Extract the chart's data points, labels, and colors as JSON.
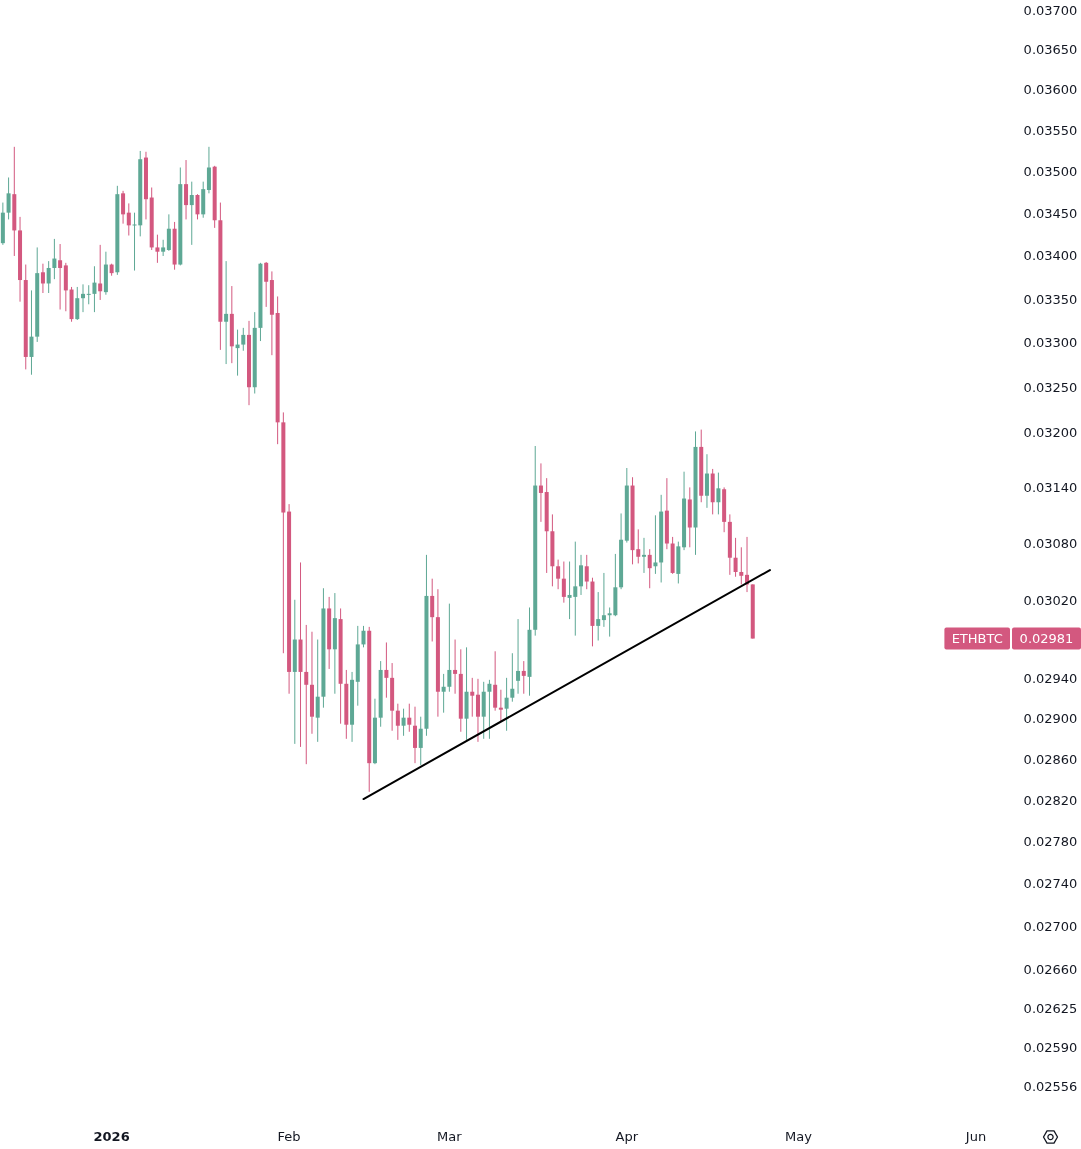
{
  "chart_data": {
    "type": "candlestick",
    "log": true,
    "xlim": [
      "2025-12-12T12:00",
      "2026-06-01"
    ],
    "ylim": [
      0.02556,
      0.037
    ],
    "xticks": [
      {
        "value": "2026-01-01",
        "label": "2026"
      },
      {
        "value": "2026-02-01",
        "label": "Feb"
      },
      {
        "value": "2026-03-01",
        "label": "Mar"
      },
      {
        "value": "2026-04-01",
        "label": "Apr"
      },
      {
        "value": "2026-05-01",
        "label": "May"
      },
      {
        "value": "2026-06-01",
        "label": "Jun"
      }
    ],
    "yticks": [
      {
        "value": 0.037,
        "label": "0.03700"
      },
      {
        "value": 0.0365,
        "label": "0.03650"
      },
      {
        "value": 0.036,
        "label": "0.03600"
      },
      {
        "value": 0.0355,
        "label": "0.03550"
      },
      {
        "value": 0.035,
        "label": "0.03500"
      },
      {
        "value": 0.0345,
        "label": "0.03450"
      },
      {
        "value": 0.034,
        "label": "0.03400"
      },
      {
        "value": 0.0335,
        "label": "0.03350"
      },
      {
        "value": 0.033,
        "label": "0.03300"
      },
      {
        "value": 0.0325,
        "label": "0.03250"
      },
      {
        "value": 0.032,
        "label": "0.03200"
      },
      {
        "value": 0.0314,
        "label": "0.03140"
      },
      {
        "value": 0.0308,
        "label": "0.03080"
      },
      {
        "value": 0.0302,
        "label": "0.03020"
      },
      {
        "value": 0.0294,
        "label": "0.02940"
      },
      {
        "value": 0.029,
        "label": "0.02900"
      },
      {
        "value": 0.0286,
        "label": "0.02860"
      },
      {
        "value": 0.0282,
        "label": "0.02820"
      },
      {
        "value": 0.0278,
        "label": "0.02780"
      },
      {
        "value": 0.0274,
        "label": "0.02740"
      },
      {
        "value": 0.027,
        "label": "0.02700"
      },
      {
        "value": 0.0266,
        "label": "0.02660"
      },
      0.02625,
      {
        "value": 0.0259,
        "label": "0.02590"
      },
      0.02556
    ],
    "x": [
      "2025-12-13",
      "2025-12-14",
      "2025-12-15",
      "2025-12-16",
      "2025-12-17",
      "2025-12-18",
      "2025-12-19",
      "2025-12-20",
      "2025-12-21",
      "2025-12-22",
      "2025-12-23",
      "2025-12-24",
      "2025-12-25",
      "2025-12-26",
      "2025-12-27",
      "2025-12-28",
      "2025-12-29",
      "2025-12-30",
      "2025-12-31",
      "2026-01-01",
      "2026-01-02",
      "2026-01-03",
      "2026-01-04",
      "2026-01-05",
      "2026-01-06",
      "2026-01-07",
      "2026-01-08",
      "2026-01-09",
      "2026-01-10",
      "2026-01-11",
      "2026-01-12",
      "2026-01-13",
      "2026-01-14",
      "2026-01-15",
      "2026-01-16",
      "2026-01-17",
      "2026-01-18",
      "2026-01-19",
      "2026-01-20",
      "2026-01-21",
      "2026-01-22",
      "2026-01-23",
      "2026-01-24",
      "2026-01-25",
      "2026-01-26",
      "2026-01-27",
      "2026-01-28",
      "2026-01-29",
      "2026-01-30",
      "2026-01-31",
      "2026-02-01",
      "2026-02-02",
      "2026-02-03",
      "2026-02-04",
      "2026-02-05",
      "2026-02-06",
      "2026-02-07",
      "2026-02-08",
      "2026-02-09",
      "2026-02-10",
      "2026-02-11",
      "2026-02-12",
      "2026-02-13",
      "2026-02-14",
      "2026-02-15",
      "2026-02-16",
      "2026-02-17",
      "2026-02-18",
      "2026-02-19",
      "2026-02-20",
      "2026-02-21",
      "2026-02-22",
      "2026-02-23",
      "2026-02-24",
      "2026-02-25",
      "2026-02-26",
      "2026-02-27",
      "2026-02-28",
      "2026-03-01",
      "2026-03-02",
      "2026-03-03",
      "2026-03-04",
      "2026-03-05",
      "2026-03-06",
      "2026-03-07",
      "2026-03-08",
      "2026-03-09",
      "2026-03-10",
      "2026-03-11",
      "2026-03-12",
      "2026-03-13",
      "2026-03-14",
      "2026-03-15",
      "2026-03-16",
      "2026-03-17",
      "2026-03-18",
      "2026-03-19",
      "2026-03-20",
      "2026-03-21",
      "2026-03-22",
      "2026-03-23",
      "2026-03-24",
      "2026-03-25",
      "2026-03-26",
      "2026-03-27",
      "2026-03-28",
      "2026-03-29",
      "2026-03-30",
      "2026-03-31",
      "2026-04-01",
      "2026-04-02",
      "2026-04-03",
      "2026-04-04",
      "2026-04-05",
      "2026-04-06",
      "2026-04-07",
      "2026-04-08",
      "2026-04-09",
      "2026-04-10",
      "2026-04-11",
      "2026-04-12",
      "2026-04-13",
      "2026-04-14",
      "2026-04-15",
      "2026-04-16",
      "2026-04-17",
      "2026-04-18",
      "2026-04-19",
      "2026-04-20",
      "2026-04-21",
      "2026-04-22",
      "2026-04-23"
    ],
    "ohlc": [
      [
        0.03415,
        0.03463,
        0.03413,
        0.03451
      ],
      [
        0.03451,
        0.03493,
        0.03443,
        0.03474
      ],
      [
        0.03473,
        0.0353,
        0.034,
        0.0343
      ],
      [
        0.0343,
        0.03446,
        0.03347,
        0.03372
      ],
      [
        0.03372,
        0.0339,
        0.0327,
        0.03284
      ],
      [
        0.03284,
        0.0336,
        0.03264,
        0.03307
      ],
      [
        0.03307,
        0.0341,
        0.03301,
        0.0338
      ],
      [
        0.03381,
        0.03391,
        0.03357,
        0.03368
      ],
      [
        0.03368,
        0.03394,
        0.03357,
        0.03386
      ],
      [
        0.03386,
        0.0342,
        0.03373,
        0.03397
      ],
      [
        0.03395,
        0.03414,
        0.03338,
        0.03386
      ],
      [
        0.03389,
        0.03392,
        0.03336,
        0.0336
      ],
      [
        0.03361,
        0.03364,
        0.03324,
        0.03327
      ],
      [
        0.03327,
        0.03364,
        0.03326,
        0.03351
      ],
      [
        0.03351,
        0.03367,
        0.03335,
        0.03356
      ],
      [
        0.03355,
        0.03366,
        0.03344,
        0.03356
      ],
      [
        0.03356,
        0.03388,
        0.03335,
        0.03369
      ],
      [
        0.03368,
        0.03413,
        0.03349,
        0.03359
      ],
      [
        0.03358,
        0.03405,
        0.03355,
        0.0339
      ],
      [
        0.0339,
        0.03391,
        0.03377,
        0.0338
      ],
      [
        0.03381,
        0.03483,
        0.03378,
        0.03473
      ],
      [
        0.03474,
        0.03477,
        0.03438,
        0.03449
      ],
      [
        0.03451,
        0.03462,
        0.03424,
        0.03436
      ],
      [
        0.03436,
        0.03451,
        0.03383,
        0.03437
      ],
      [
        0.03436,
        0.03525,
        0.03423,
        0.03515
      ],
      [
        0.03517,
        0.03524,
        0.03443,
        0.03467
      ],
      [
        0.03469,
        0.03481,
        0.03407,
        0.0341
      ],
      [
        0.0341,
        0.03425,
        0.03392,
        0.03405
      ],
      [
        0.03405,
        0.03419,
        0.034,
        0.0341
      ],
      [
        0.03407,
        0.03449,
        0.03406,
        0.03432
      ],
      [
        0.03432,
        0.0344,
        0.03384,
        0.0339
      ],
      [
        0.0339,
        0.03505,
        0.03389,
        0.03485
      ],
      [
        0.03485,
        0.03514,
        0.03443,
        0.0346
      ],
      [
        0.0346,
        0.03488,
        0.03413,
        0.03472
      ],
      [
        0.03472,
        0.03473,
        0.03443,
        0.03449
      ],
      [
        0.03449,
        0.03488,
        0.03445,
        0.03479
      ],
      [
        0.03478,
        0.0353,
        0.03474,
        0.03505
      ],
      [
        0.03506,
        0.03507,
        0.03433,
        0.03442
      ],
      [
        0.03442,
        0.03463,
        0.03292,
        0.03324
      ],
      [
        0.03324,
        0.03394,
        0.03276,
        0.03333
      ],
      [
        0.03333,
        0.03365,
        0.03277,
        0.03296
      ],
      [
        0.03294,
        0.03315,
        0.03263,
        0.03298
      ],
      [
        0.03298,
        0.03317,
        0.03291,
        0.03309
      ],
      [
        0.03309,
        0.03325,
        0.0323,
        0.0325
      ],
      [
        0.0325,
        0.03335,
        0.03243,
        0.03317
      ],
      [
        0.03317,
        0.03392,
        0.03302,
        0.03391
      ],
      [
        0.03392,
        0.03393,
        0.03341,
        0.0337
      ],
      [
        0.03372,
        0.03382,
        0.03286,
        0.03332
      ],
      [
        0.03334,
        0.03353,
        0.03187,
        0.03211
      ],
      [
        0.03211,
        0.03222,
        0.02966,
        0.03113
      ],
      [
        0.03114,
        0.03122,
        0.02925,
        0.02947
      ],
      [
        0.02947,
        0.03021,
        0.02875,
        0.0298
      ],
      [
        0.0298,
        0.0306,
        0.02872,
        0.02947
      ],
      [
        0.02947,
        0.02995,
        0.02855,
        0.02934
      ],
      [
        0.02934,
        0.02988,
        0.02885,
        0.02902
      ],
      [
        0.02901,
        0.0298,
        0.02877,
        0.02922
      ],
      [
        0.02922,
        0.03033,
        0.02911,
        0.03012
      ],
      [
        0.03012,
        0.03024,
        0.0295,
        0.0297
      ],
      [
        0.0297,
        0.03028,
        0.02925,
        0.03002
      ],
      [
        0.03001,
        0.03012,
        0.02895,
        0.02935
      ],
      [
        0.02935,
        0.02949,
        0.0288,
        0.02894
      ],
      [
        0.02894,
        0.02947,
        0.02877,
        0.02939
      ],
      [
        0.02937,
        0.02994,
        0.02913,
        0.02975
      ],
      [
        0.02975,
        0.02994,
        0.02972,
        0.02989
      ],
      [
        0.02989,
        0.02993,
        0.02828,
        0.02856
      ],
      [
        0.02856,
        0.0292,
        0.02855,
        0.02901
      ],
      [
        0.02901,
        0.02958,
        0.02892,
        0.02949
      ],
      [
        0.02949,
        0.02977,
        0.02921,
        0.02941
      ],
      [
        0.02941,
        0.02956,
        0.02888,
        0.02908
      ],
      [
        0.02908,
        0.02915,
        0.02879,
        0.02893
      ],
      [
        0.02893,
        0.0291,
        0.02883,
        0.02901
      ],
      [
        0.02901,
        0.02915,
        0.02887,
        0.02894
      ],
      [
        0.02893,
        0.02912,
        0.02856,
        0.02871
      ],
      [
        0.02871,
        0.02902,
        0.02854,
        0.0289
      ],
      [
        0.0289,
        0.03068,
        0.02883,
        0.03025
      ],
      [
        0.03025,
        0.03043,
        0.02978,
        0.03003
      ],
      [
        0.03003,
        0.03032,
        0.02902,
        0.02927
      ],
      [
        0.02927,
        0.02945,
        0.02906,
        0.02932
      ],
      [
        0.02932,
        0.03017,
        0.02927,
        0.02949
      ],
      [
        0.02949,
        0.0298,
        0.02925,
        0.02945
      ],
      [
        0.02945,
        0.0297,
        0.02887,
        0.029
      ],
      [
        0.029,
        0.02972,
        0.02879,
        0.02927
      ],
      [
        0.02927,
        0.02941,
        0.02902,
        0.02923
      ],
      [
        0.02924,
        0.0294,
        0.02877,
        0.02902
      ],
      [
        0.02902,
        0.02937,
        0.0288,
        0.02927
      ],
      [
        0.02927,
        0.02939,
        0.0288,
        0.02935
      ],
      [
        0.02934,
        0.02968,
        0.02908,
        0.02911
      ],
      [
        0.02911,
        0.02929,
        0.02897,
        0.02909
      ],
      [
        0.0291,
        0.02941,
        0.02888,
        0.02921
      ],
      [
        0.02921,
        0.02966,
        0.02917,
        0.0293
      ],
      [
        0.02938,
        0.03001,
        0.02925,
        0.02948
      ],
      [
        0.02948,
        0.02958,
        0.02925,
        0.02943
      ],
      [
        0.02942,
        0.03013,
        0.02923,
        0.0299
      ],
      [
        0.0299,
        0.03185,
        0.02984,
        0.03142
      ],
      [
        0.03142,
        0.03166,
        0.03103,
        0.03134
      ],
      [
        0.03135,
        0.0315,
        0.03049,
        0.03093
      ],
      [
        0.03093,
        0.03111,
        0.03035,
        0.03056
      ],
      [
        0.03056,
        0.03063,
        0.03032,
        0.03043
      ],
      [
        0.03043,
        0.03061,
        0.03018,
        0.03024
      ],
      [
        0.03023,
        0.03061,
        0.03001,
        0.03026
      ],
      [
        0.03024,
        0.03082,
        0.02984,
        0.03035
      ],
      [
        0.03035,
        0.03068,
        0.03026,
        0.03057
      ],
      [
        0.03056,
        0.03068,
        0.03032,
        0.0304
      ],
      [
        0.0304,
        0.03044,
        0.02973,
        0.02994
      ],
      [
        0.02994,
        0.03029,
        0.02979,
        0.03001
      ],
      [
        0.03,
        0.03049,
        0.02993,
        0.03005
      ],
      [
        0.03005,
        0.03013,
        0.02983,
        0.03007
      ],
      [
        0.03005,
        0.03069,
        0.03004,
        0.03034
      ],
      [
        0.03034,
        0.03112,
        0.03032,
        0.03084
      ],
      [
        0.03083,
        0.03161,
        0.03081,
        0.03142
      ],
      [
        0.03142,
        0.03151,
        0.03058,
        0.03073
      ],
      [
        0.03074,
        0.03095,
        0.03059,
        0.03066
      ],
      [
        0.03066,
        0.03086,
        0.03049,
        0.03068
      ],
      [
        0.03068,
        0.03074,
        0.03033,
        0.03054
      ],
      [
        0.03056,
        0.0311,
        0.03048,
        0.0306
      ],
      [
        0.0306,
        0.03132,
        0.03039,
        0.03114
      ],
      [
        0.03115,
        0.0315,
        0.03074,
        0.0308
      ],
      [
        0.0308,
        0.03087,
        0.03048,
        0.03049
      ],
      [
        0.03048,
        0.03082,
        0.03038,
        0.03077
      ],
      [
        0.03076,
        0.03157,
        0.03073,
        0.03128
      ],
      [
        0.03127,
        0.0314,
        0.03076,
        0.03097
      ],
      [
        0.03097,
        0.03201,
        0.03068,
        0.03184
      ],
      [
        0.03184,
        0.03203,
        0.03124,
        0.03131
      ],
      [
        0.03131,
        0.03176,
        0.03118,
        0.03155
      ],
      [
        0.03155,
        0.0316,
        0.03111,
        0.03124
      ],
      [
        0.03124,
        0.03156,
        0.03111,
        0.03139
      ],
      [
        0.03138,
        0.0314,
        0.03092,
        0.03103
      ],
      [
        0.03103,
        0.03111,
        0.03047,
        0.03065
      ],
      [
        0.03065,
        0.03086,
        0.03045,
        0.0305
      ],
      [
        0.0305,
        0.03076,
        0.03037,
        0.03046
      ],
      [
        0.03047,
        0.03087,
        0.03029,
        0.03037
      ],
      [
        0.03037,
        0.03037,
        0.02981,
        0.02981
      ]
    ],
    "colors": [
      "#5ea895",
      "#5ea895",
      "#d3587f",
      "#d3587f",
      "#d3587f",
      "#5ea895",
      "#5ea895",
      "#d3587f",
      "#5ea895",
      "#5ea895",
      "#d3587f",
      "#d3587f",
      "#d3587f",
      "#5ea895",
      "#5ea895",
      "#5ea895",
      "#5ea895",
      "#d3587f",
      "#5ea895",
      "#d3587f",
      "#5ea895",
      "#d3587f",
      "#d3587f",
      "#5ea895",
      "#5ea895",
      "#d3587f",
      "#d3587f",
      "#d3587f",
      "#5ea895",
      "#5ea895",
      "#d3587f",
      "#5ea895",
      "#d3587f",
      "#5ea895",
      "#d3587f",
      "#5ea895",
      "#5ea895",
      "#d3587f",
      "#d3587f",
      "#5ea895",
      "#d3587f",
      "#5ea895",
      "#5ea895",
      "#d3587f",
      "#5ea895",
      "#5ea895",
      "#d3587f",
      "#d3587f",
      "#d3587f",
      "#d3587f",
      "#d3587f",
      "#5ea895",
      "#d3587f",
      "#d3587f",
      "#d3587f",
      "#5ea895",
      "#5ea895",
      "#d3587f",
      "#5ea895",
      "#d3587f",
      "#d3587f",
      "#5ea895",
      "#5ea895",
      "#5ea895",
      "#d3587f",
      "#5ea895",
      "#5ea895",
      "#d3587f",
      "#d3587f",
      "#d3587f",
      "#5ea895",
      "#d3587f",
      "#d3587f",
      "#5ea895",
      "#5ea895",
      "#d3587f",
      "#d3587f",
      "#5ea895",
      "#5ea895",
      "#d3587f",
      "#d3587f",
      "#5ea895",
      "#d3587f",
      "#d3587f",
      "#5ea895",
      "#5ea895",
      "#d3587f",
      "#d3587f",
      "#5ea895",
      "#5ea895",
      "#5ea895",
      "#d3587f",
      "#5ea895",
      "#5ea895",
      "#d3587f",
      "#d3587f",
      "#d3587f",
      "#d3587f",
      "#d3587f",
      "#5ea895",
      "#5ea895",
      "#5ea895",
      "#d3587f",
      "#d3587f",
      "#5ea895",
      "#5ea895",
      "#5ea895",
      "#5ea895",
      "#5ea895",
      "#5ea895",
      "#d3587f",
      "#d3587f",
      "#5ea895",
      "#d3587f",
      "#5ea895",
      "#5ea895",
      "#d3587f",
      "#d3587f",
      "#5ea895",
      "#5ea895",
      "#d3587f",
      "#5ea895",
      "#d3587f",
      "#5ea895",
      "#d3587f",
      "#5ea895",
      "#d3587f",
      "#d3587f",
      "#d3587f",
      "#d3587f",
      "#d3587f",
      "#d3587f"
    ],
    "series": [
      {
        "type": "line",
        "x": [
          "2026-02-14",
          "2026-04-26"
        ],
        "values": [
          0.02821,
          0.03052
        ],
        "color": "#000000"
      }
    ],
    "annotations": [
      "ETHBTC",
      "0.02981"
    ]
  }
}
